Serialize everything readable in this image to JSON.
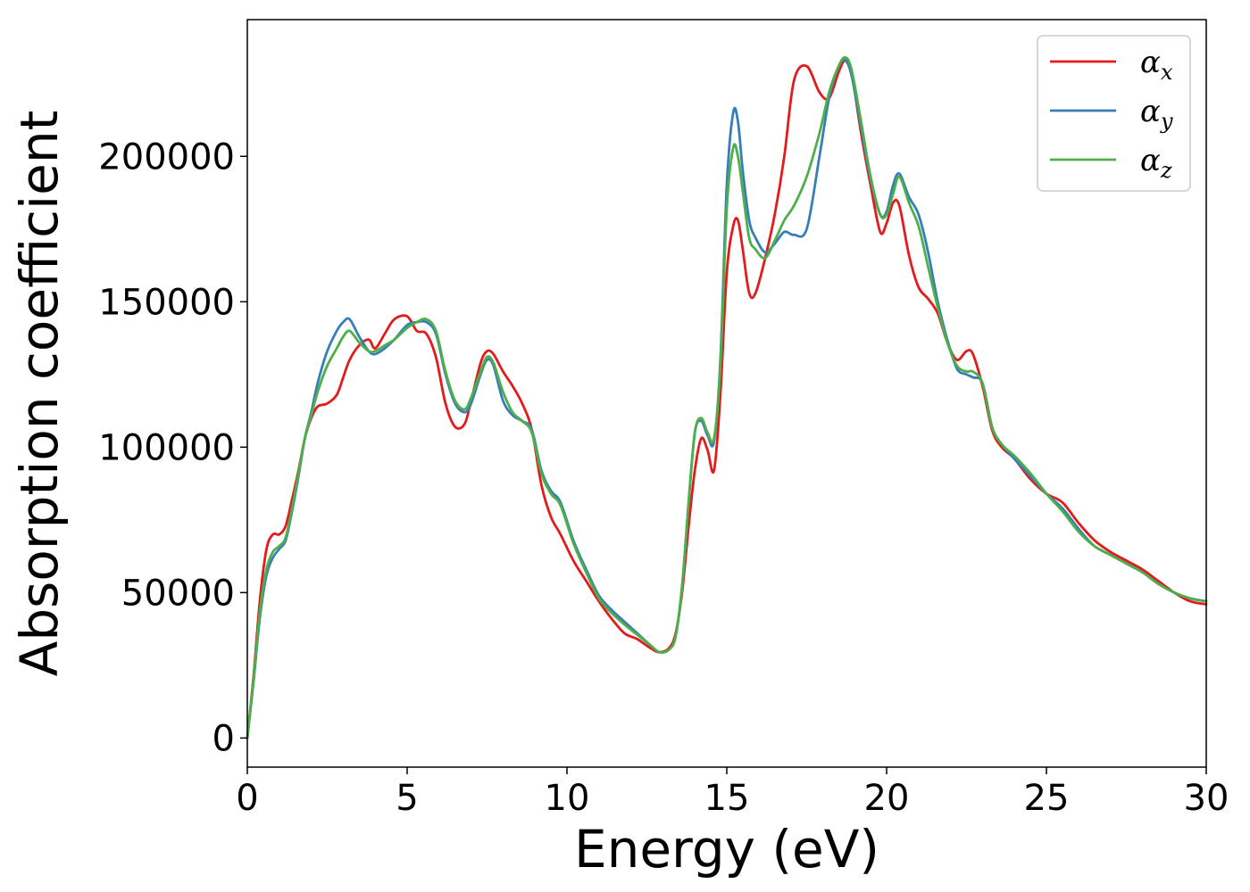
{
  "chart_data": {
    "type": "line",
    "title": "",
    "xlabel": "Energy (eV)",
    "ylabel": "Absorption coefficient",
    "xlim": [
      0,
      30
    ],
    "ylim": [
      -10000,
      247000
    ],
    "xticks": [
      0,
      5,
      10,
      15,
      20,
      25,
      30
    ],
    "yticks": [
      0,
      50000,
      100000,
      150000,
      200000
    ],
    "grid": false,
    "legend": "top-right",
    "x": [
      0,
      0.2,
      0.4,
      0.6,
      0.8,
      1.0,
      1.2,
      1.4,
      1.6,
      1.8,
      2.0,
      2.2,
      2.5,
      2.8,
      3.0,
      3.2,
      3.5,
      3.8,
      4.0,
      4.3,
      4.6,
      5.0,
      5.3,
      5.6,
      5.9,
      6.2,
      6.5,
      6.8,
      7.0,
      7.3,
      7.5,
      7.7,
      8.0,
      8.3,
      8.6,
      8.9,
      9.2,
      9.5,
      9.8,
      10.2,
      10.6,
      11.0,
      11.4,
      11.8,
      12.2,
      12.6,
      12.9,
      13.2,
      13.4,
      13.6,
      13.8,
      14.0,
      14.2,
      14.4,
      14.6,
      14.8,
      15.0,
      15.2,
      15.35,
      15.5,
      15.7,
      15.9,
      16.2,
      16.5,
      16.8,
      17.1,
      17.5,
      17.9,
      18.2,
      18.5,
      18.7,
      18.9,
      19.2,
      19.5,
      19.8,
      20.0,
      20.2,
      20.4,
      20.7,
      21.0,
      21.3,
      21.6,
      21.9,
      22.2,
      22.5,
      22.7,
      23.0,
      23.3,
      23.6,
      24.0,
      24.5,
      25.0,
      25.5,
      26.0,
      26.5,
      27.0,
      27.5,
      28.0,
      28.5,
      29.0,
      29.5,
      30.0
    ],
    "series": [
      {
        "name": "α",
        "subscript": "x",
        "color": "#e41a1c",
        "values": [
          0,
          22000,
          48000,
          65000,
          70000,
          70000,
          73000,
          82000,
          92000,
          103000,
          110000,
          114000,
          115000,
          118000,
          124000,
          130000,
          135000,
          137000,
          134000,
          139000,
          144000,
          145000,
          140000,
          139000,
          131000,
          115000,
          107000,
          108000,
          116000,
          129000,
          133000,
          132000,
          126000,
          121000,
          115000,
          106000,
          87000,
          76000,
          70000,
          61000,
          54000,
          47000,
          41000,
          36000,
          34000,
          31000,
          29500,
          31000,
          36000,
          50000,
          72000,
          92000,
          103000,
          99000,
          92000,
          118000,
          160000,
          176000,
          178000,
          168000,
          153000,
          153000,
          165000,
          180000,
          200000,
          226000,
          231000,
          222000,
          220000,
          229000,
          233000,
          229000,
          208000,
          190000,
          174000,
          177000,
          184000,
          183000,
          166000,
          155000,
          151000,
          146000,
          136000,
          130000,
          133000,
          132000,
          121000,
          106000,
          100000,
          96000,
          89000,
          84000,
          81000,
          74000,
          68000,
          64000,
          61000,
          58000,
          54000,
          50000,
          47000,
          46000
        ]
      },
      {
        "name": "α",
        "subscript": "y",
        "color": "#377eb8",
        "values": [
          0,
          20000,
          42000,
          56000,
          62000,
          65000,
          68000,
          78000,
          90000,
          103000,
          112000,
          122000,
          133000,
          140000,
          143000,
          144000,
          138000,
          133000,
          132000,
          134000,
          137000,
          142000,
          143000,
          143000,
          139000,
          125000,
          115000,
          112000,
          115000,
          125000,
          130000,
          128000,
          116000,
          111000,
          109000,
          106000,
          92000,
          85000,
          81000,
          68000,
          58000,
          49000,
          44000,
          40000,
          36000,
          32000,
          29500,
          30500,
          35000,
          52000,
          80000,
          105000,
          109000,
          104000,
          102000,
          130000,
          190000,
          215000,
          212000,
          195000,
          178000,
          172000,
          167000,
          170000,
          174000,
          173000,
          175000,
          200000,
          220000,
          231000,
          233000,
          228000,
          210000,
          192000,
          180000,
          181000,
          190000,
          194000,
          186000,
          180000,
          167000,
          150000,
          137000,
          127000,
          125000,
          124000,
          122000,
          107000,
          101000,
          96000,
          90000,
          84000,
          79000,
          72000,
          66000,
          63000,
          60000,
          57000,
          53000,
          50000,
          48000,
          47000
        ]
      },
      {
        "name": "α",
        "subscript": "z",
        "color": "#4daf4a",
        "values": [
          0,
          21000,
          44000,
          58000,
          64000,
          66000,
          69000,
          79000,
          91000,
          103000,
          111000,
          119000,
          128000,
          134000,
          138000,
          140000,
          136000,
          133000,
          133000,
          135000,
          137000,
          141000,
          143000,
          144000,
          140000,
          126000,
          116000,
          113000,
          117000,
          126000,
          131000,
          129000,
          119000,
          112000,
          109000,
          105000,
          91000,
          84000,
          80000,
          67000,
          57000,
          48000,
          43000,
          39000,
          35500,
          32000,
          29500,
          30500,
          35000,
          52000,
          80000,
          105000,
          110000,
          105000,
          103000,
          128000,
          182000,
          203000,
          200000,
          188000,
          172000,
          168000,
          165000,
          171000,
          178000,
          183000,
          193000,
          208000,
          222000,
          231000,
          234000,
          230000,
          212000,
          193000,
          180000,
          180000,
          187000,
          193000,
          184000,
          176000,
          162000,
          148000,
          136000,
          128000,
          126000,
          126000,
          122000,
          107000,
          101000,
          97000,
          91000,
          84000,
          78000,
          71000,
          66000,
          63000,
          60000,
          57000,
          53000,
          50000,
          48000,
          47000
        ]
      }
    ]
  }
}
